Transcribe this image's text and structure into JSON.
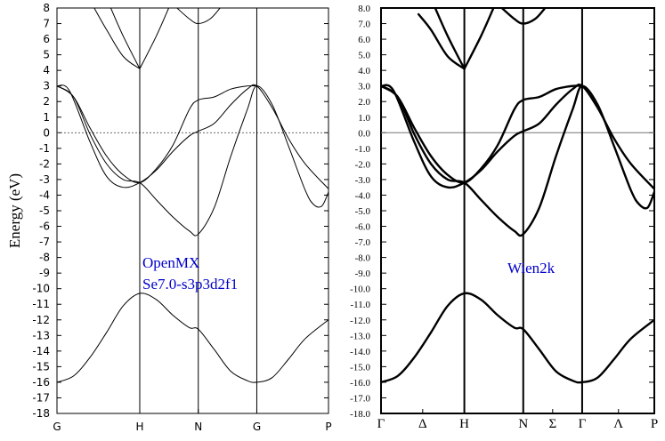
{
  "chart_data": [
    {
      "type": "line",
      "title": "",
      "ylabel": "Energy (eV)",
      "xlabel": "",
      "ylim": [
        -18,
        8
      ],
      "yticks": [
        "8",
        "7",
        "6",
        "5",
        "4",
        "3",
        "2",
        "1",
        "0",
        "-1",
        "-2",
        "-3",
        "-4",
        "-5",
        "-6",
        "-7",
        "-8",
        "-9",
        "-10",
        "-11",
        "-12",
        "-13",
        "-14",
        "-15",
        "-16",
        "-17",
        "-18"
      ],
      "kpoints": [
        {
          "label": "G",
          "x": 0
        },
        {
          "label": "H",
          "x": 1
        },
        {
          "label": "N",
          "x": 1.707
        },
        {
          "label": "G",
          "x": 2.414
        },
        {
          "label": "P",
          "x": 3.28
        }
      ],
      "fermi_line": {
        "y": 0,
        "style": "dotted"
      },
      "annotations": [
        "OpenMX",
        "Se7.0-s3p3d2f1"
      ],
      "annotation_color": "#0000cc",
      "series": [
        {
          "x": [
            0,
            0.2,
            0.4,
            0.6,
            0.8,
            1.0,
            1.2,
            1.4,
            1.6,
            1.707,
            1.9,
            2.1,
            2.3,
            2.414,
            2.6,
            2.8,
            3.0,
            3.28
          ],
          "y": [
            -16.0,
            -15.6,
            -14.4,
            -12.8,
            -11.1,
            -10.3,
            -10.7,
            -11.7,
            -12.5,
            -12.6,
            -13.9,
            -15.3,
            -15.9,
            -16.0,
            -15.7,
            -14.5,
            -13.2,
            -12.0
          ]
        },
        {
          "x": [
            0,
            0.2,
            0.4,
            0.6,
            0.8,
            1.0,
            1.2,
            1.4,
            1.6,
            1.707,
            1.9,
            2.1,
            2.3,
            2.414,
            2.6,
            2.8,
            3.0,
            3.1,
            3.2,
            3.28
          ],
          "y": [
            3.0,
            2.3,
            -0.1,
            -2.0,
            -3.0,
            -3.2,
            -4.3,
            -5.4,
            -6.3,
            -6.5,
            -4.8,
            -1.5,
            1.5,
            3.0,
            1.8,
            -0.9,
            -3.7,
            -4.6,
            -4.7,
            -3.8
          ]
        },
        {
          "x": [
            0,
            0.15,
            0.4,
            0.6,
            0.8,
            1.0,
            1.2,
            1.4,
            1.6,
            1.707,
            1.9,
            2.1,
            2.3,
            2.414,
            2.6,
            2.8,
            3.0,
            3.28
          ],
          "y": [
            3.0,
            2.7,
            -0.6,
            -2.8,
            -3.5,
            -3.2,
            -2.4,
            -1.2,
            -0.2,
            0.1,
            0.6,
            1.8,
            2.8,
            3.0,
            1.6,
            -0.4,
            -2.0,
            -3.6
          ]
        },
        {
          "x": [
            0,
            0.2,
            0.4,
            0.6,
            0.8,
            1.0,
            1.2,
            1.4,
            1.6,
            1.707,
            1.9,
            2.1,
            2.3,
            2.414
          ],
          "y": [
            3.0,
            2.3,
            0.3,
            -1.5,
            -2.7,
            -3.2,
            -2.3,
            -0.8,
            1.5,
            2.1,
            2.3,
            2.8,
            3.0,
            3.0
          ]
        },
        {
          "x": [
            0.45,
            0.6,
            0.8,
            1.0
          ],
          "y": [
            8.0,
            6.6,
            4.9,
            4.1
          ]
        },
        {
          "x": [
            0.65,
            0.8,
            1.0
          ],
          "y": [
            8.0,
            6.2,
            4.1
          ]
        },
        {
          "x": [
            1.0,
            1.2,
            1.35
          ],
          "y": [
            4.1,
            6.2,
            8.0
          ]
        },
        {
          "x": [
            1.45,
            1.6,
            1.707,
            1.85,
            1.97
          ],
          "y": [
            8.0,
            7.3,
            7.0,
            7.3,
            8.0
          ]
        }
      ]
    },
    {
      "type": "line",
      "title": "",
      "ylabel": "",
      "xlabel": "",
      "ylim": [
        -18,
        8
      ],
      "yticks": [
        "8.0",
        "7.0",
        "6.0",
        "5.0",
        "4.0",
        "3.0",
        "2.0",
        "1.0",
        "0.0",
        "-1.0",
        "-2.0",
        "-3.0",
        "-4.0",
        "-5.0",
        "-6.0",
        "-7.0",
        "-8.0",
        "-9.0",
        "-10.0",
        "-11.0",
        "-12.0",
        "-13.0",
        "-14.0",
        "-15.0",
        "-16.0",
        "-17.0",
        "-18.0"
      ],
      "kpoints": [
        {
          "label": "Γ",
          "x": 0,
          "line": false
        },
        {
          "label": "Δ",
          "x": 0.5,
          "line": false
        },
        {
          "label": "H",
          "x": 1,
          "line": true
        },
        {
          "label": "N",
          "x": 1.707,
          "line": true
        },
        {
          "label": "Σ",
          "x": 2.06,
          "line": false
        },
        {
          "label": "Γ",
          "x": 2.414,
          "line": true
        },
        {
          "label": "Λ",
          "x": 2.85,
          "line": false
        },
        {
          "label": "P",
          "x": 3.28,
          "line": false
        }
      ],
      "fermi_line": {
        "y": 0,
        "style": "solid"
      },
      "annotations": [
        "Wien2k"
      ],
      "annotation_color": "#0000cc",
      "series": [
        {
          "x": [
            0,
            0.2,
            0.4,
            0.6,
            0.8,
            1.0,
            1.2,
            1.4,
            1.6,
            1.707,
            1.9,
            2.1,
            2.3,
            2.414,
            2.6,
            2.8,
            3.0,
            3.28
          ],
          "y": [
            -16.0,
            -15.6,
            -14.4,
            -12.8,
            -11.1,
            -10.3,
            -10.7,
            -11.7,
            -12.5,
            -12.6,
            -13.9,
            -15.3,
            -15.9,
            -16.0,
            -15.7,
            -14.5,
            -13.2,
            -12.0
          ]
        },
        {
          "x": [
            0,
            0.2,
            0.4,
            0.6,
            0.8,
            1.0,
            1.2,
            1.4,
            1.6,
            1.707,
            1.9,
            2.1,
            2.3,
            2.414,
            2.6,
            2.8,
            3.0,
            3.1,
            3.2,
            3.28
          ],
          "y": [
            3.0,
            2.3,
            -0.1,
            -2.0,
            -3.0,
            -3.2,
            -4.3,
            -5.4,
            -6.3,
            -6.5,
            -4.8,
            -1.5,
            1.5,
            3.0,
            1.8,
            -0.9,
            -3.7,
            -4.6,
            -4.8,
            -3.8
          ]
        },
        {
          "x": [
            0,
            0.15,
            0.4,
            0.6,
            0.8,
            1.0,
            1.2,
            1.4,
            1.6,
            1.707,
            1.9,
            2.1,
            2.3,
            2.414,
            2.6,
            2.8,
            3.0,
            3.28
          ],
          "y": [
            3.0,
            2.7,
            -0.6,
            -2.8,
            -3.5,
            -3.2,
            -2.4,
            -1.2,
            -0.2,
            0.1,
            0.6,
            1.8,
            2.8,
            3.0,
            1.6,
            -0.4,
            -2.0,
            -3.6
          ]
        },
        {
          "x": [
            0,
            0.2,
            0.4,
            0.6,
            0.8,
            1.0,
            1.2,
            1.4,
            1.6,
            1.707,
            1.9,
            2.1,
            2.3,
            2.414
          ],
          "y": [
            3.0,
            2.3,
            0.3,
            -1.5,
            -2.7,
            -3.2,
            -2.3,
            -0.8,
            1.5,
            2.1,
            2.3,
            2.8,
            3.0,
            3.0
          ]
        },
        {
          "x": [
            0.45,
            0.6,
            0.8,
            1.0
          ],
          "y": [
            7.6,
            6.6,
            4.9,
            4.1
          ]
        },
        {
          "x": [
            0.65,
            0.8,
            1.0
          ],
          "y": [
            8.0,
            6.2,
            4.1
          ]
        },
        {
          "x": [
            1.0,
            1.2,
            1.35
          ],
          "y": [
            4.1,
            6.2,
            8.0
          ]
        },
        {
          "x": [
            1.45,
            1.6,
            1.707,
            1.85,
            1.97
          ],
          "y": [
            8.0,
            7.3,
            7.0,
            7.3,
            8.0
          ]
        }
      ]
    }
  ]
}
